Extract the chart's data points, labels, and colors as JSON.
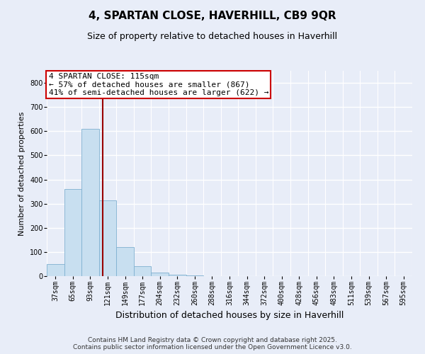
{
  "title": "4, SPARTAN CLOSE, HAVERHILL, CB9 9QR",
  "subtitle": "Size of property relative to detached houses in Haverhill",
  "xlabel": "Distribution of detached houses by size in Haverhill",
  "ylabel": "Number of detached properties",
  "categories": [
    "37sqm",
    "65sqm",
    "93sqm",
    "121sqm",
    "149sqm",
    "177sqm",
    "204sqm",
    "232sqm",
    "260sqm",
    "288sqm",
    "316sqm",
    "344sqm",
    "372sqm",
    "400sqm",
    "428sqm",
    "456sqm",
    "483sqm",
    "511sqm",
    "539sqm",
    "567sqm",
    "595sqm"
  ],
  "values": [
    50,
    360,
    610,
    315,
    120,
    40,
    15,
    5,
    2,
    0,
    0,
    0,
    0,
    0,
    0,
    0,
    0,
    0,
    0,
    0,
    0
  ],
  "bar_color": "#c8dff0",
  "bar_edge_color": "#7fb0d0",
  "vline_x": 2.72,
  "vline_color": "#990000",
  "annotation_text": "4 SPARTAN CLOSE: 115sqm\n← 57% of detached houses are smaller (867)\n41% of semi-detached houses are larger (622) →",
  "annotation_box_color": "#ffffff",
  "annotation_box_edge": "#cc0000",
  "ylim": [
    0,
    850
  ],
  "yticks": [
    0,
    100,
    200,
    300,
    400,
    500,
    600,
    700,
    800
  ],
  "background_color": "#e8edf8",
  "grid_color": "#ffffff",
  "footer_line1": "Contains HM Land Registry data © Crown copyright and database right 2025.",
  "footer_line2": "Contains public sector information licensed under the Open Government Licence v3.0.",
  "title_fontsize": 11,
  "subtitle_fontsize": 9,
  "ylabel_fontsize": 8,
  "xlabel_fontsize": 9,
  "tick_fontsize": 7,
  "annotation_fontsize": 8,
  "footer_fontsize": 6.5
}
